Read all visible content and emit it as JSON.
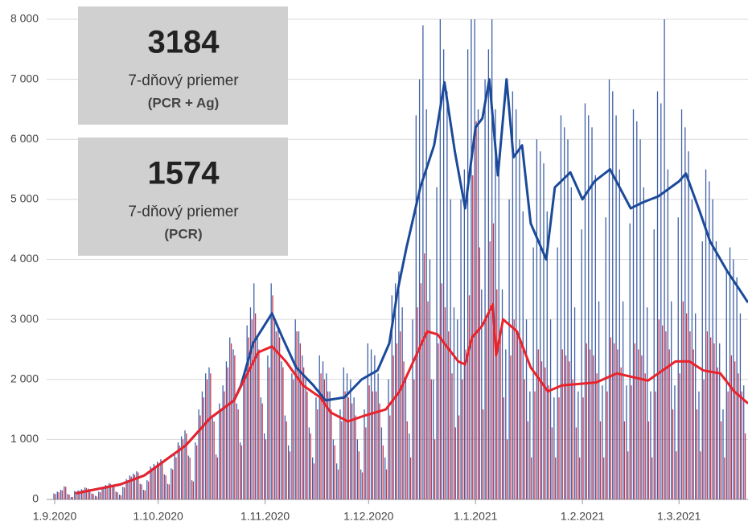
{
  "chart_data": {
    "type": "bar_line",
    "xlim": [
      0,
      201
    ],
    "xticks": [
      {
        "value": 0,
        "label": "1.9.2020"
      },
      {
        "value": 30,
        "label": "1.10.2020"
      },
      {
        "value": 61,
        "label": "1.11.2020"
      },
      {
        "value": 91,
        "label": "1.12.2020"
      },
      {
        "value": 122,
        "label": "1.1.2021"
      },
      {
        "value": 153,
        "label": "1.2.2021"
      },
      {
        "value": 181,
        "label": "1.3.2021"
      }
    ],
    "ylim": [
      0,
      8000
    ],
    "yticks": [
      0,
      {
        "value": 1000,
        "label": "1 000"
      },
      {
        "value": 2000,
        "label": "2 000"
      },
      {
        "value": 3000,
        "label": "3 000"
      },
      {
        "value": 4000,
        "label": "4 000"
      },
      {
        "value": 5000,
        "label": "5 000"
      },
      {
        "value": 6000,
        "label": "6 000"
      },
      {
        "value": 7000,
        "label": "7 000"
      },
      {
        "value": 8000,
        "label": "8 000"
      }
    ],
    "grid": true,
    "annotations": [
      {
        "number": 3184,
        "text": "7-dňový priemer",
        "subtext": "(PCR + Ag)",
        "color": "#1f4e9c"
      },
      {
        "number": 1574,
        "text": "7-dňový priemer",
        "subtext": "(PCR)",
        "color": "#e8232b"
      }
    ],
    "bars": [
      {
        "color": "#3f5fa6",
        "values": [
          100,
          130,
          160,
          220,
          90,
          40,
          140,
          150,
          170,
          200,
          180,
          100,
          60,
          130,
          190,
          240,
          270,
          230,
          130,
          80,
          210,
          340,
          400,
          430,
          470,
          260,
          160,
          320,
          550,
          590,
          630,
          670,
          420,
          260,
          520,
          740,
          950,
          1050,
          1150,
          730,
          320,
          950,
          1500,
          1800,
          2100,
          2200,
          1350,
          750,
          1600,
          1900,
          2300,
          2700,
          2500,
          1600,
          950,
          2100,
          2900,
          3200,
          3600,
          2700,
          1700,
          1100,
          2400,
          3600,
          3000,
          2900,
          2300,
          1400,
          900,
          2100,
          3000,
          2800,
          2400,
          2000,
          1200,
          700,
          1700,
          2400,
          2300,
          2100,
          1800,
          1000,
          600,
          1500,
          2200,
          2100,
          2000,
          1700,
          1000,
          500,
          1500,
          2600,
          2500,
          2400,
          2100,
          1200,
          700,
          2000,
          3400,
          3600,
          3800,
          3200,
          2000,
          1100,
          3000,
          6400,
          7000,
          7900,
          6500,
          4000,
          2000,
          5200,
          8000,
          7500,
          6800,
          5000,
          3200,
          3000,
          5000,
          5500,
          7500,
          8000,
          8000,
          6500,
          3500,
          7000,
          7500,
          8000,
          6500,
          5500,
          3500,
          2500,
          5000,
          6800,
          6500,
          6000,
          4800,
          3000,
          1800,
          4200,
          6000,
          5800,
          5600,
          4800,
          3000,
          1700,
          4200,
          6400,
          6200,
          6000,
          5200,
          3200,
          1800,
          4500,
          6600,
          6400,
          6200,
          5400,
          3300,
          1900,
          4700,
          7000,
          6800,
          6400,
          5500,
          3300,
          1900,
          4600,
          6500,
          6300,
          6000,
          5200,
          3200,
          1800,
          4500,
          6800,
          6600,
          8000,
          5500,
          3300,
          1900,
          4700,
          6500,
          6200,
          5800,
          5000,
          3100,
          1800,
          4300,
          5500,
          5300,
          5000,
          4300,
          2600,
          1500,
          3800,
          4200,
          4000,
          3700,
          3100,
          1900
        ]
      },
      {
        "color": "#c8344e",
        "values": [
          90,
          120,
          150,
          210,
          80,
          40,
          130,
          140,
          160,
          190,
          170,
          90,
          50,
          120,
          180,
          230,
          260,
          220,
          120,
          70,
          200,
          320,
          380,
          410,
          450,
          250,
          150,
          300,
          520,
          560,
          600,
          640,
          400,
          250,
          500,
          700,
          900,
          1000,
          1100,
          700,
          300,
          900,
          1400,
          1700,
          2000,
          2100,
          1300,
          700,
          1500,
          1800,
          2200,
          2600,
          2400,
          1500,
          900,
          2000,
          2700,
          3000,
          3100,
          2500,
          1600,
          1000,
          2200,
          3400,
          2800,
          2700,
          2200,
          1300,
          800,
          2000,
          2800,
          2600,
          2200,
          1800,
          1100,
          600,
          1500,
          2100,
          2000,
          1800,
          1500,
          900,
          500,
          1300,
          1800,
          1700,
          1600,
          1400,
          800,
          450,
          1200,
          1900,
          1800,
          1800,
          1600,
          900,
          500,
          1400,
          2400,
          2600,
          2800,
          2300,
          1300,
          700,
          2000,
          3200,
          3600,
          4100,
          3300,
          2000,
          1000,
          2600,
          3600,
          3200,
          2800,
          2100,
          1200,
          1400,
          2000,
          2500,
          3400,
          5400,
          6300,
          4200,
          1500,
          3000,
          4300,
          4600,
          3500,
          2800,
          1700,
          1000,
          2400,
          3000,
          2800,
          2600,
          2000,
          1300,
          700,
          1800,
          2500,
          2300,
          2200,
          1900,
          1200,
          700,
          1700,
          2500,
          2400,
          2300,
          2000,
          1200,
          700,
          1700,
          2600,
          2500,
          2400,
          2100,
          1300,
          700,
          1800,
          2700,
          2600,
          2500,
          2200,
          1300,
          800,
          1900,
          2600,
          2500,
          2400,
          2100,
          1300,
          700,
          1800,
          3000,
          2900,
          2800,
          2500,
          1500,
          800,
          2100,
          3300,
          3100,
          2800,
          2500,
          1500,
          800,
          2000,
          2800,
          2700,
          2600,
          2200,
          1300,
          700,
          1800,
          2400,
          2300,
          2100,
          1800,
          1100
        ]
      }
    ],
    "lines": [
      {
        "color": "#1b4a9a",
        "x": [
          6,
          19,
          26,
          38,
          45,
          52,
          54,
          57.5,
          63,
          66,
          70,
          75,
          78.5,
          84,
          89,
          93.6,
          97,
          99.5,
          102,
          106,
          110,
          113,
          116,
          119,
          122,
          124,
          126,
          128.5,
          131,
          133,
          135.5,
          138,
          142.5,
          145,
          149.5,
          153,
          156.5,
          161,
          167,
          170.5,
          175,
          181,
          183,
          187,
          190,
          195,
          198.5,
          201
        ],
        "values": [
          100,
          250,
          400,
          900,
          1350,
          1650,
          1900,
          2600,
          3100,
          2700,
          2200,
          1900,
          1650,
          1700,
          2000,
          2150,
          2600,
          3500,
          4200,
          5200,
          5900,
          6950,
          5800,
          4850,
          6200,
          6350,
          7000,
          5400,
          7000,
          5700,
          5900,
          4600,
          4000,
          5200,
          5450,
          5000,
          5300,
          5500,
          4850,
          4950,
          5050,
          5300,
          5430,
          4800,
          4300,
          3800,
          3500,
          3280
        ]
      },
      {
        "color": "#e8232b",
        "x": [
          6,
          19,
          26,
          38,
          45,
          52,
          55,
          59,
          63,
          67,
          72,
          77,
          80,
          85,
          90,
          96,
          100,
          104,
          108,
          111,
          117,
          119,
          121,
          124,
          127,
          128,
          130,
          134,
          138,
          143,
          147,
          157,
          163,
          172,
          180,
          184,
          188,
          193,
          197,
          201
        ],
        "values": [
          100,
          250,
          400,
          900,
          1350,
          1650,
          2000,
          2450,
          2550,
          2300,
          1900,
          1700,
          1450,
          1300,
          1400,
          1500,
          1800,
          2300,
          2800,
          2750,
          2300,
          2250,
          2700,
          2900,
          3250,
          2400,
          3000,
          2800,
          2200,
          1800,
          1900,
          1950,
          2100,
          1980,
          2300,
          2300,
          2150,
          2100,
          1800,
          1600
        ]
      }
    ]
  }
}
